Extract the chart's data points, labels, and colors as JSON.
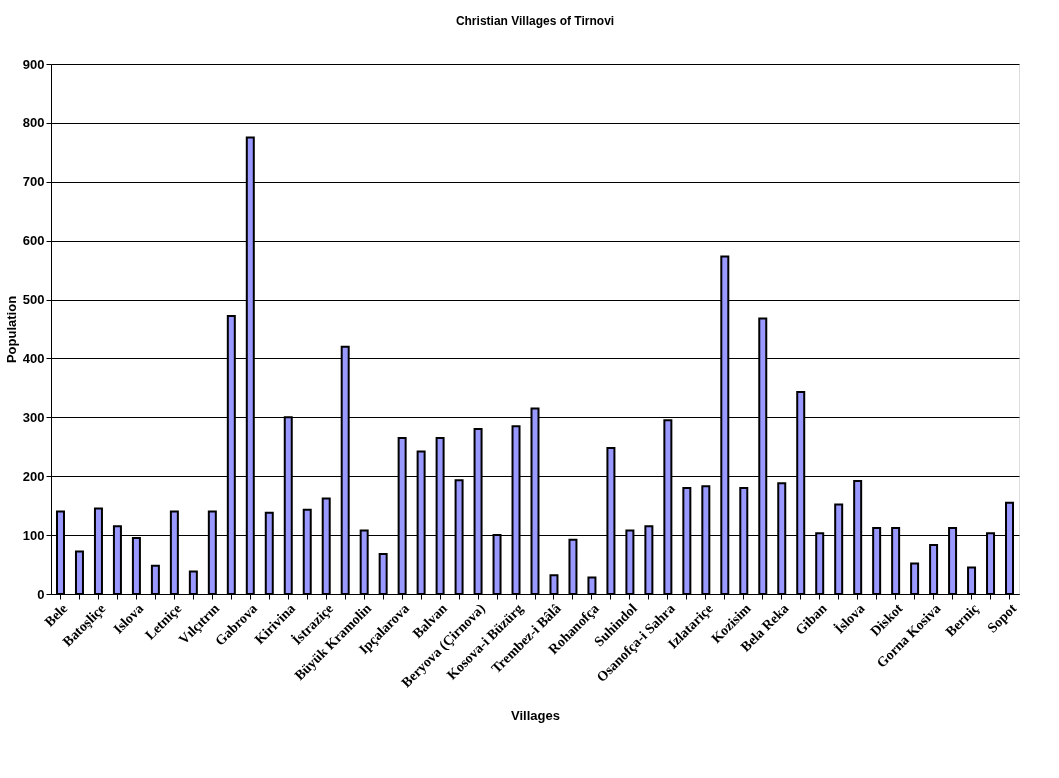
{
  "chart_data": {
    "type": "bar",
    "title": "Christian Villages of Tirnovi",
    "xlabel": "Villages",
    "ylabel": "Population",
    "categories": [
      "Bele",
      null,
      "Batoşliçe",
      null,
      "Islova",
      null,
      "Letniçe",
      null,
      "Vılçıtrın",
      null,
      "Gabrova",
      null,
      "Kirivina",
      null,
      "İstraziçe",
      null,
      "Büyük Kramolin",
      null,
      "Ipçalarova",
      null,
      "Balvan",
      null,
      "Beryova (Çirnova)",
      null,
      "Kosova-i Büzürg",
      null,
      "Trembez-i Bâlâ",
      null,
      "Rohanofça",
      null,
      "Suhindol",
      null,
      "Osanofça-i Sahra",
      null,
      "Izlatariçe",
      null,
      "Kozisim",
      null,
      "Bela Reka",
      null,
      "Giban",
      null,
      "İslova",
      null,
      "Diskot",
      null,
      "Gorna Kosiva",
      null,
      "Berniç",
      null,
      "Sopot"
    ],
    "values": [
      140,
      72,
      145,
      115,
      95,
      48,
      140,
      38,
      140,
      472,
      775,
      138,
      300,
      143,
      162,
      420,
      108,
      68,
      265,
      242,
      265,
      193,
      280,
      100,
      285,
      315,
      32,
      92,
      28,
      248,
      108,
      115,
      295,
      180,
      183,
      573,
      180,
      468,
      188,
      343,
      103,
      152,
      192,
      112,
      112,
      52,
      83,
      112,
      45,
      103,
      155
    ],
    "color": "#9999ff",
    "ylim": [
      0,
      900
    ],
    "yticks": [
      0,
      100,
      200,
      300,
      400,
      500,
      600,
      700,
      800,
      900
    ],
    "grid": "y"
  }
}
